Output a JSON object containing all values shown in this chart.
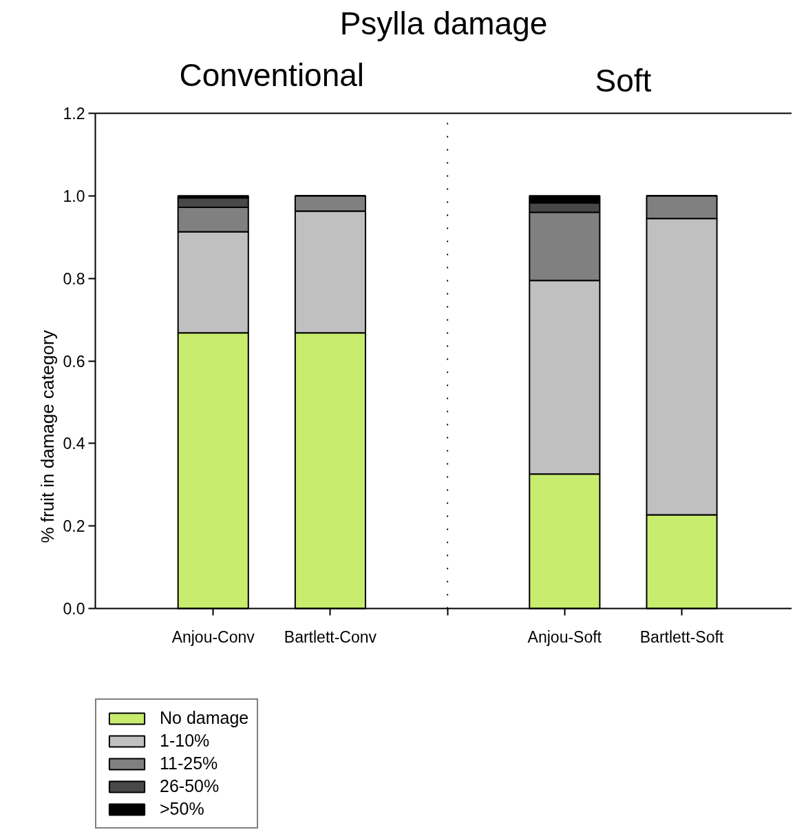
{
  "chart_data": {
    "type": "bar",
    "title": "Psylla damage",
    "ylabel": "% fruit in damage category",
    "annotations": [
      "Conventional",
      "Soft"
    ],
    "categories": [
      "Anjou-Conv",
      "Bartlett-Conv",
      null,
      "Anjou-Soft",
      "Bartlett-Soft"
    ],
    "stacked": true,
    "series": [
      {
        "name": "No damage",
        "color": "#c8ec6e",
        "values": [
          0.668,
          0.668,
          null,
          0.326,
          0.227
        ]
      },
      {
        "name": "1-10%",
        "color": "#c0c0c0",
        "values": [
          0.245,
          0.295,
          null,
          0.469,
          0.718
        ]
      },
      {
        "name": "11-25%",
        "color": "#808080",
        "values": [
          0.059,
          0.037,
          null,
          0.165,
          0.055
        ]
      },
      {
        "name": "26-50%",
        "color": "#484848",
        "values": [
          0.023,
          0,
          null,
          0.023,
          0
        ]
      },
      {
        "name": ">50%",
        "color": "#000000",
        "values": [
          0.005,
          0,
          null,
          0.017,
          0
        ]
      }
    ],
    "ylim": [
      0,
      1.2
    ],
    "yticks": [
      {
        "value": 0,
        "label": "0.0"
      },
      {
        "value": 0.2,
        "label": "0.2"
      },
      {
        "value": 0.4,
        "label": "0.4"
      },
      {
        "value": 0.6,
        "label": "0.6"
      },
      {
        "value": 0.8,
        "label": "0.8"
      },
      {
        "value": 1.0,
        "label": "1.0"
      },
      {
        "value": 1.2,
        "label": "1.2"
      }
    ],
    "legend": "bottom left"
  }
}
